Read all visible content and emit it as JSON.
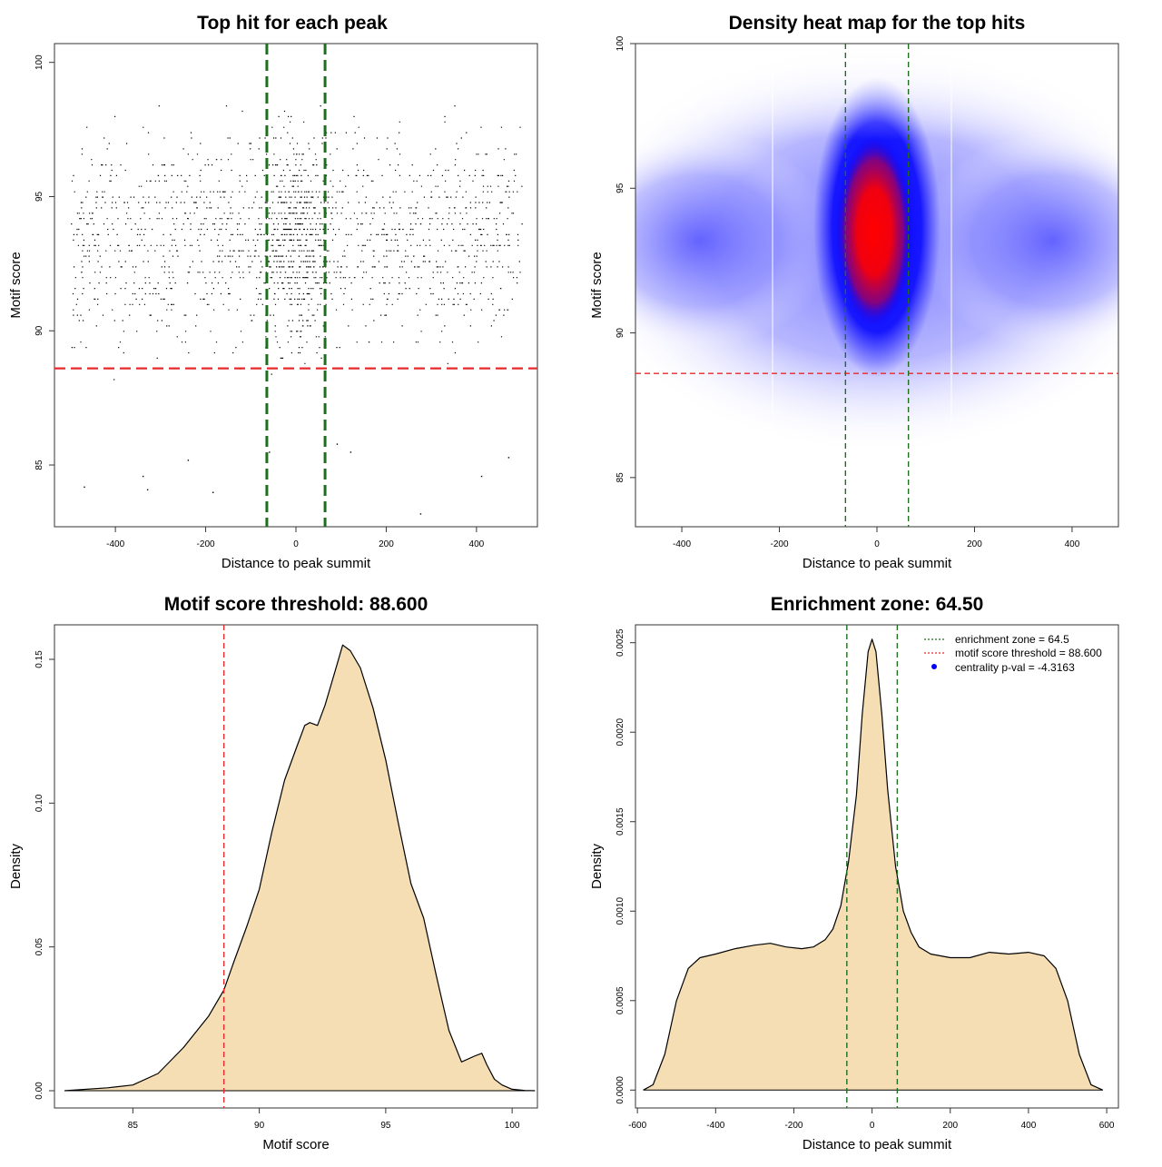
{
  "colors": {
    "threshold": "#e8292c",
    "zone": "#1e6e1e",
    "area_fill": "#f5deb3",
    "scatter": "#000000",
    "heat_low": "#ffffff",
    "heat_mid": "#0000ff",
    "heat_high": "#ff0000",
    "legend_dot": "#0000ff"
  },
  "chart_data": [
    {
      "id": "scatter",
      "type": "scatter",
      "title": "Top hit for each peak",
      "xlabel": "Distance to peak summit",
      "ylabel": "Motif score",
      "xlim": [
        -535,
        535
      ],
      "ylim": [
        82.7,
        100.7
      ],
      "xticks": [
        "-400",
        "-200",
        "0",
        "200",
        "400"
      ],
      "xtick_values": [
        -400,
        -200,
        0,
        200,
        400
      ],
      "yticks": [
        "85",
        "90",
        "95",
        "100"
      ],
      "ytick_values": [
        85,
        90,
        95,
        100
      ],
      "points_description_values": {
        "x_range": [
          -500,
          500
        ],
        "y_range": [
          83,
          100
        ],
        "center_x": 0,
        "center_y": 93.5,
        "approx_count": 9000
      },
      "sparse_points": [
        {
          "x": -470,
          "y": 84.2
        },
        {
          "x": -340,
          "y": 84.6
        },
        {
          "x": -330,
          "y": 84.1
        },
        {
          "x": -185,
          "y": 84.0
        },
        {
          "x": 275,
          "y": 83.2
        },
        {
          "x": 410,
          "y": 84.6
        },
        {
          "x": -240,
          "y": 85.2
        },
        {
          "x": 470,
          "y": 85.3
        },
        {
          "x": -60,
          "y": 85.5
        },
        {
          "x": 90,
          "y": 85.8
        },
        {
          "x": 120,
          "y": 85.5
        }
      ],
      "hline": {
        "y": 88.6,
        "label": "motif score threshold"
      },
      "vlines": [
        -64.5,
        64.5
      ]
    },
    {
      "id": "heatmap",
      "type": "heatmap",
      "title": "Density heat map for the top hits",
      "xlabel": "Distance to peak summit",
      "ylabel": "Motif score",
      "xlim": [
        -495,
        495
      ],
      "ylim": [
        83.3,
        100.0
      ],
      "xticks": [
        "-400",
        "-200",
        "0",
        "200",
        "400"
      ],
      "xtick_values": [
        -400,
        -200,
        0,
        200,
        400
      ],
      "yticks": [
        "85",
        "90",
        "95",
        "100"
      ],
      "ytick_values": [
        85,
        90,
        95,
        100
      ],
      "density_peak": {
        "x": 0,
        "y": 94.0
      },
      "hline": {
        "y": 88.6
      },
      "vlines": [
        -64.5,
        64.5
      ]
    },
    {
      "id": "score_density",
      "type": "area",
      "title": "Motif score threshold: 88.600",
      "xlabel": "Motif score",
      "ylabel": "Density",
      "xlim": [
        81.9,
        101.0
      ],
      "ylim": [
        -0.006,
        0.162
      ],
      "xticks": [
        "85",
        "90",
        "95",
        "100"
      ],
      "xtick_values": [
        85,
        90,
        95,
        100
      ],
      "yticks": [
        "0.00",
        "0.05",
        "0.10",
        "0.15"
      ],
      "ytick_values": [
        0.0,
        0.05,
        0.1,
        0.15
      ],
      "x": [
        82.3,
        84.0,
        85.0,
        86.0,
        87.0,
        88.0,
        88.6,
        89.0,
        89.5,
        90.0,
        90.5,
        91.0,
        91.5,
        91.8,
        92.0,
        92.3,
        92.6,
        93.0,
        93.3,
        93.6,
        94.0,
        94.5,
        95.0,
        95.5,
        96.0,
        96.5,
        97.0,
        97.5,
        98.0,
        98.5,
        98.8,
        99.0,
        99.3,
        99.6,
        100.0,
        100.5,
        100.9
      ],
      "y": [
        0.0,
        0.001,
        0.002,
        0.006,
        0.015,
        0.026,
        0.035,
        0.045,
        0.057,
        0.07,
        0.09,
        0.108,
        0.12,
        0.127,
        0.128,
        0.127,
        0.134,
        0.146,
        0.155,
        0.153,
        0.147,
        0.133,
        0.115,
        0.093,
        0.072,
        0.06,
        0.04,
        0.021,
        0.01,
        0.012,
        0.013,
        0.009,
        0.004,
        0.002,
        0.0005,
        0.0001,
        0.0
      ],
      "vline": {
        "x": 88.6
      }
    },
    {
      "id": "distance_density",
      "type": "area",
      "title": "Enrichment zone: 64.50",
      "xlabel": "Distance to peak summit",
      "ylabel": "Density",
      "xlim": [
        -605,
        630
      ],
      "ylim": [
        -0.0001,
        0.0026
      ],
      "xticks": [
        "-600",
        "-400",
        "-200",
        "0",
        "200",
        "400",
        "600"
      ],
      "xtick_values": [
        -600,
        -400,
        -200,
        0,
        200,
        400,
        600
      ],
      "yticks": [
        "0.0000",
        "0.0005",
        "0.0010",
        "0.0015",
        "0.0020",
        "0.0025"
      ],
      "ytick_values": [
        0.0,
        0.0005,
        0.001,
        0.0015,
        0.002,
        0.0025
      ],
      "x": [
        -585,
        -560,
        -530,
        -500,
        -470,
        -440,
        -400,
        -350,
        -300,
        -260,
        -220,
        -180,
        -150,
        -120,
        -100,
        -80,
        -60,
        -40,
        -25,
        -10,
        0,
        10,
        25,
        40,
        60,
        80,
        100,
        120,
        150,
        200,
        250,
        300,
        350,
        400,
        440,
        470,
        500,
        530,
        560,
        590
      ],
      "y": [
        0.0,
        3e-05,
        0.0002,
        0.0005,
        0.00068,
        0.00074,
        0.00076,
        0.00079,
        0.00081,
        0.00082,
        0.0008,
        0.00079,
        0.0008,
        0.00084,
        0.0009,
        0.00103,
        0.00128,
        0.00165,
        0.0021,
        0.00245,
        0.00252,
        0.00245,
        0.0021,
        0.00168,
        0.00125,
        0.001,
        0.00088,
        0.0008,
        0.00076,
        0.00074,
        0.00074,
        0.00077,
        0.00076,
        0.00077,
        0.00075,
        0.00068,
        0.0005,
        0.0002,
        3e-05,
        0.0
      ],
      "vlines": [
        -64.5,
        64.5
      ],
      "legend": {
        "position": "top-right",
        "entries": [
          "enrichment zone = 64.5",
          "motif score threshold = 88.600",
          "centrality p-val = -4.3163"
        ]
      }
    }
  ]
}
